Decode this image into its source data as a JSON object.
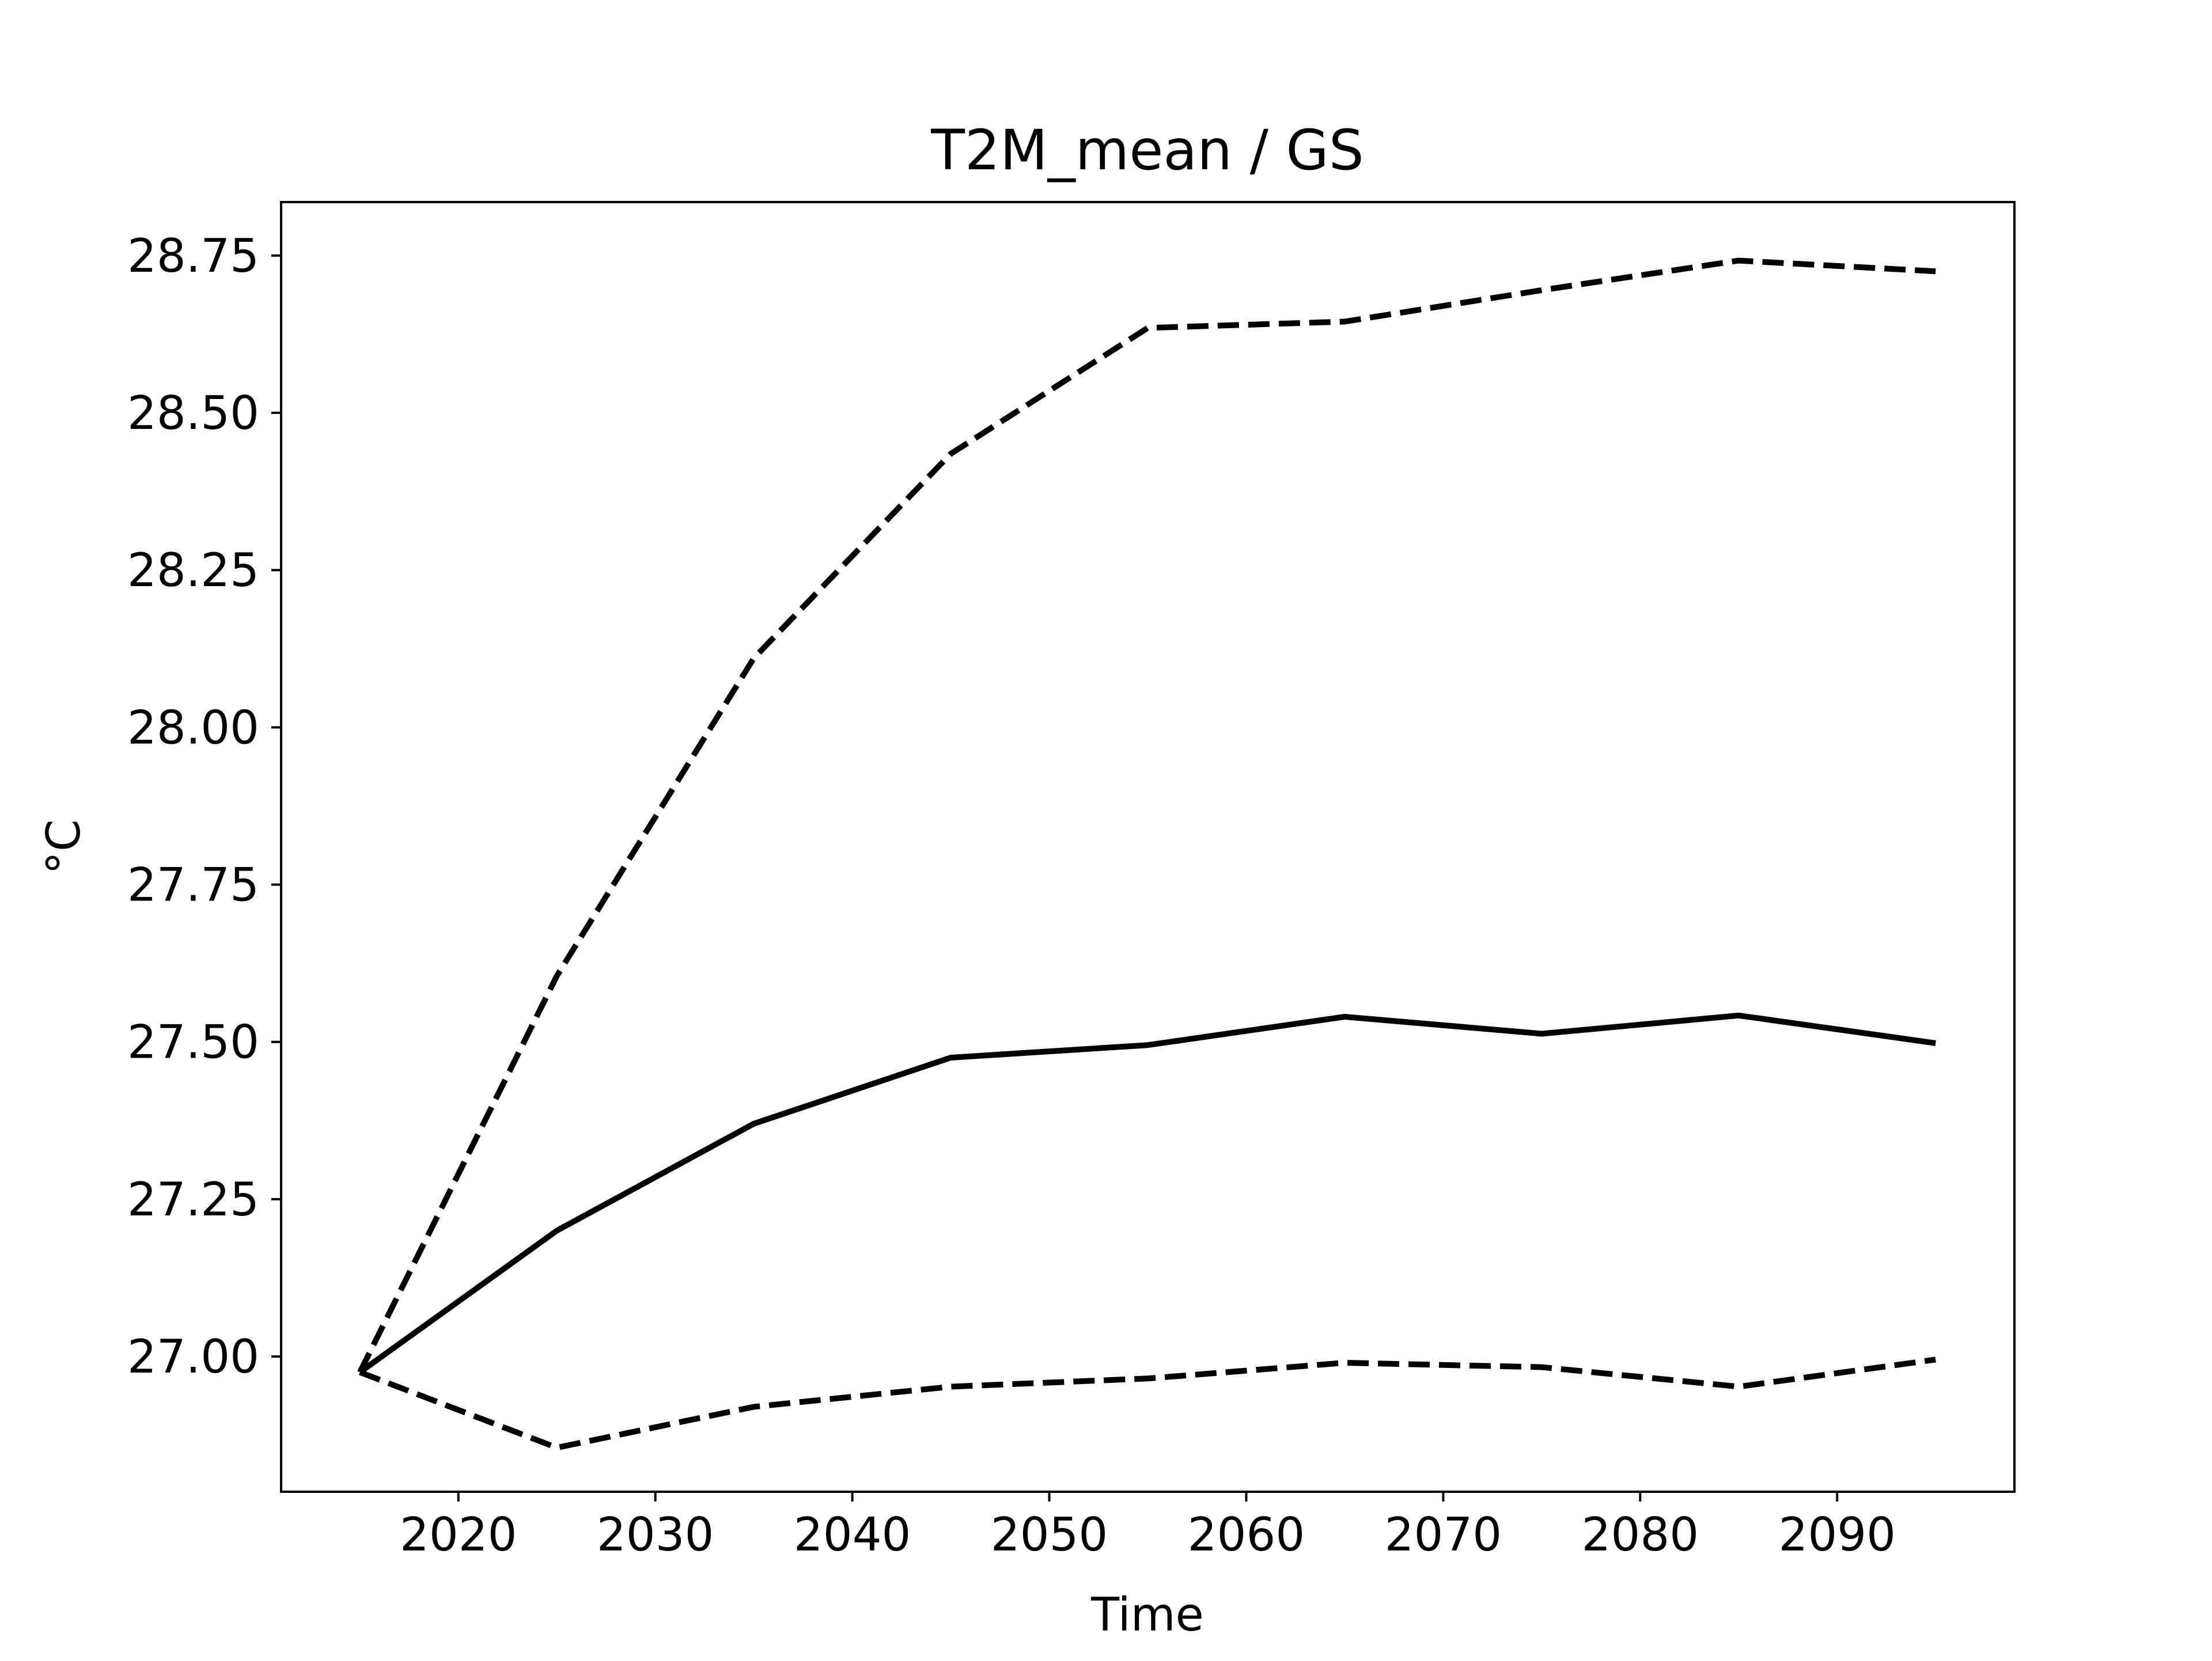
{
  "chart_data": {
    "type": "line",
    "title": "T2M_mean / GS",
    "xlabel": "Time",
    "ylabel": "°C",
    "xlim": [
      2011,
      2099
    ],
    "ylim": [
      26.785,
      28.835
    ],
    "xticks": [
      2020,
      2030,
      2040,
      2050,
      2060,
      2070,
      2080,
      2090
    ],
    "yticks": [
      "27.00",
      "27.25",
      "27.50",
      "27.75",
      "28.00",
      "28.25",
      "28.50",
      "28.75"
    ],
    "grid": false,
    "legend": "none",
    "x": [
      2015,
      2025,
      2035,
      2045,
      2055,
      2065,
      2075,
      2085,
      2095
    ],
    "series": [
      {
        "style": "solid",
        "color": "#000000",
        "values": [
          26.975,
          27.2,
          27.37,
          27.475,
          27.495,
          27.54,
          27.513,
          27.542,
          27.498
        ]
      },
      {
        "style": "dashed",
        "color": "#000000",
        "values": [
          26.975,
          27.605,
          28.11,
          28.435,
          28.635,
          28.645,
          28.695,
          28.742,
          28.725
        ]
      },
      {
        "style": "dashed",
        "color": "#000000",
        "values": [
          26.975,
          26.855,
          26.92,
          26.952,
          26.965,
          26.99,
          26.983,
          26.952,
          26.995
        ]
      }
    ]
  }
}
